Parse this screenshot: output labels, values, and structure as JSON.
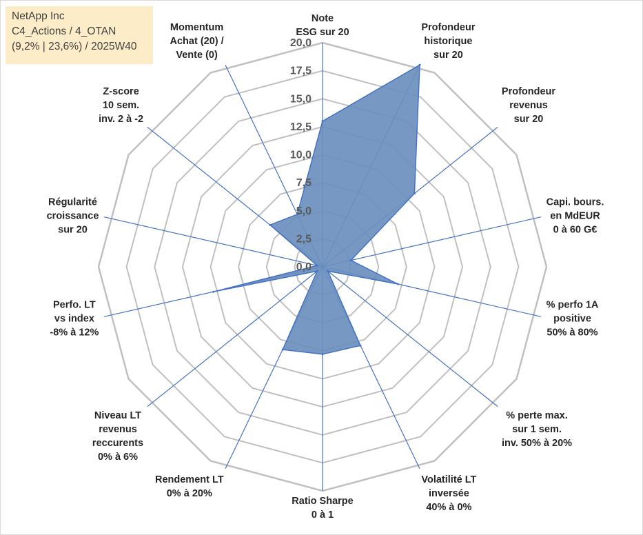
{
  "header": {
    "company": "NetApp Inc",
    "line2": "C4_Actions / 4_OTAN",
    "line3": "(9,2% | 23,6%) / 2025W40"
  },
  "chart_data": {
    "type": "radar",
    "title": "NetApp Inc",
    "rmin": 0,
    "rmax": 20,
    "ticks": [
      "0,0",
      "2,5",
      "5,0",
      "7,5",
      "10,0",
      "12,5",
      "15,0",
      "17,5",
      "20,0"
    ],
    "tick_values": [
      0,
      2.5,
      5,
      7.5,
      10,
      12.5,
      15,
      17.5,
      20
    ],
    "grid": "dodecagon",
    "colors": {
      "fill": "#6b8fbd",
      "stroke": "#4472c4",
      "grid": "#c0c0c0"
    },
    "axes": [
      {
        "label": [
          "Note",
          "ESG sur 20"
        ],
        "value": 13.0
      },
      {
        "label": [
          "Profondeur",
          "historique",
          "sur 20"
        ],
        "value": 20.0
      },
      {
        "label": [
          "Profondeur",
          "revenus",
          "sur 20"
        ],
        "value": 10.5
      },
      {
        "label": [
          "Capi. bours.",
          "en MdEUR",
          "0 à 60 G€"
        ],
        "value": 2.6
      },
      {
        "label": [
          "% perfo 1A",
          "positive",
          "50% à 80%"
        ],
        "value": 6.9
      },
      {
        "label": [
          "% perte max.",
          "sur 1 sem.",
          "inv. 50% à 20%"
        ],
        "value": 0.6
      },
      {
        "label": [
          "Volatilité LT",
          "inversée",
          "40% à 0%"
        ],
        "value": 7.8
      },
      {
        "label": [
          "Ratio Sharpe",
          "0 à 1"
        ],
        "value": 7.8
      },
      {
        "label": [
          "Rendement LT",
          "0% à 20%"
        ],
        "value": 8.2
      },
      {
        "label": [
          "Niveau LT",
          "revenus",
          "reccurents",
          "0% à 6%"
        ],
        "value": 0.6
      },
      {
        "label": [
          "Perfo. LT",
          "vs index",
          "-8% à 12%"
        ],
        "value": 10.0
      },
      {
        "label": [
          "Régularité",
          "croissance",
          "sur 20"
        ],
        "value": 0.5
      },
      {
        "label": [
          "Z-score",
          "10 sem.",
          "inv. 2 à -2"
        ],
        "value": 6.0
      },
      {
        "label": [
          "Momentum",
          "Achat (20) /",
          "Vente (0)"
        ],
        "value": 5.2
      }
    ]
  }
}
